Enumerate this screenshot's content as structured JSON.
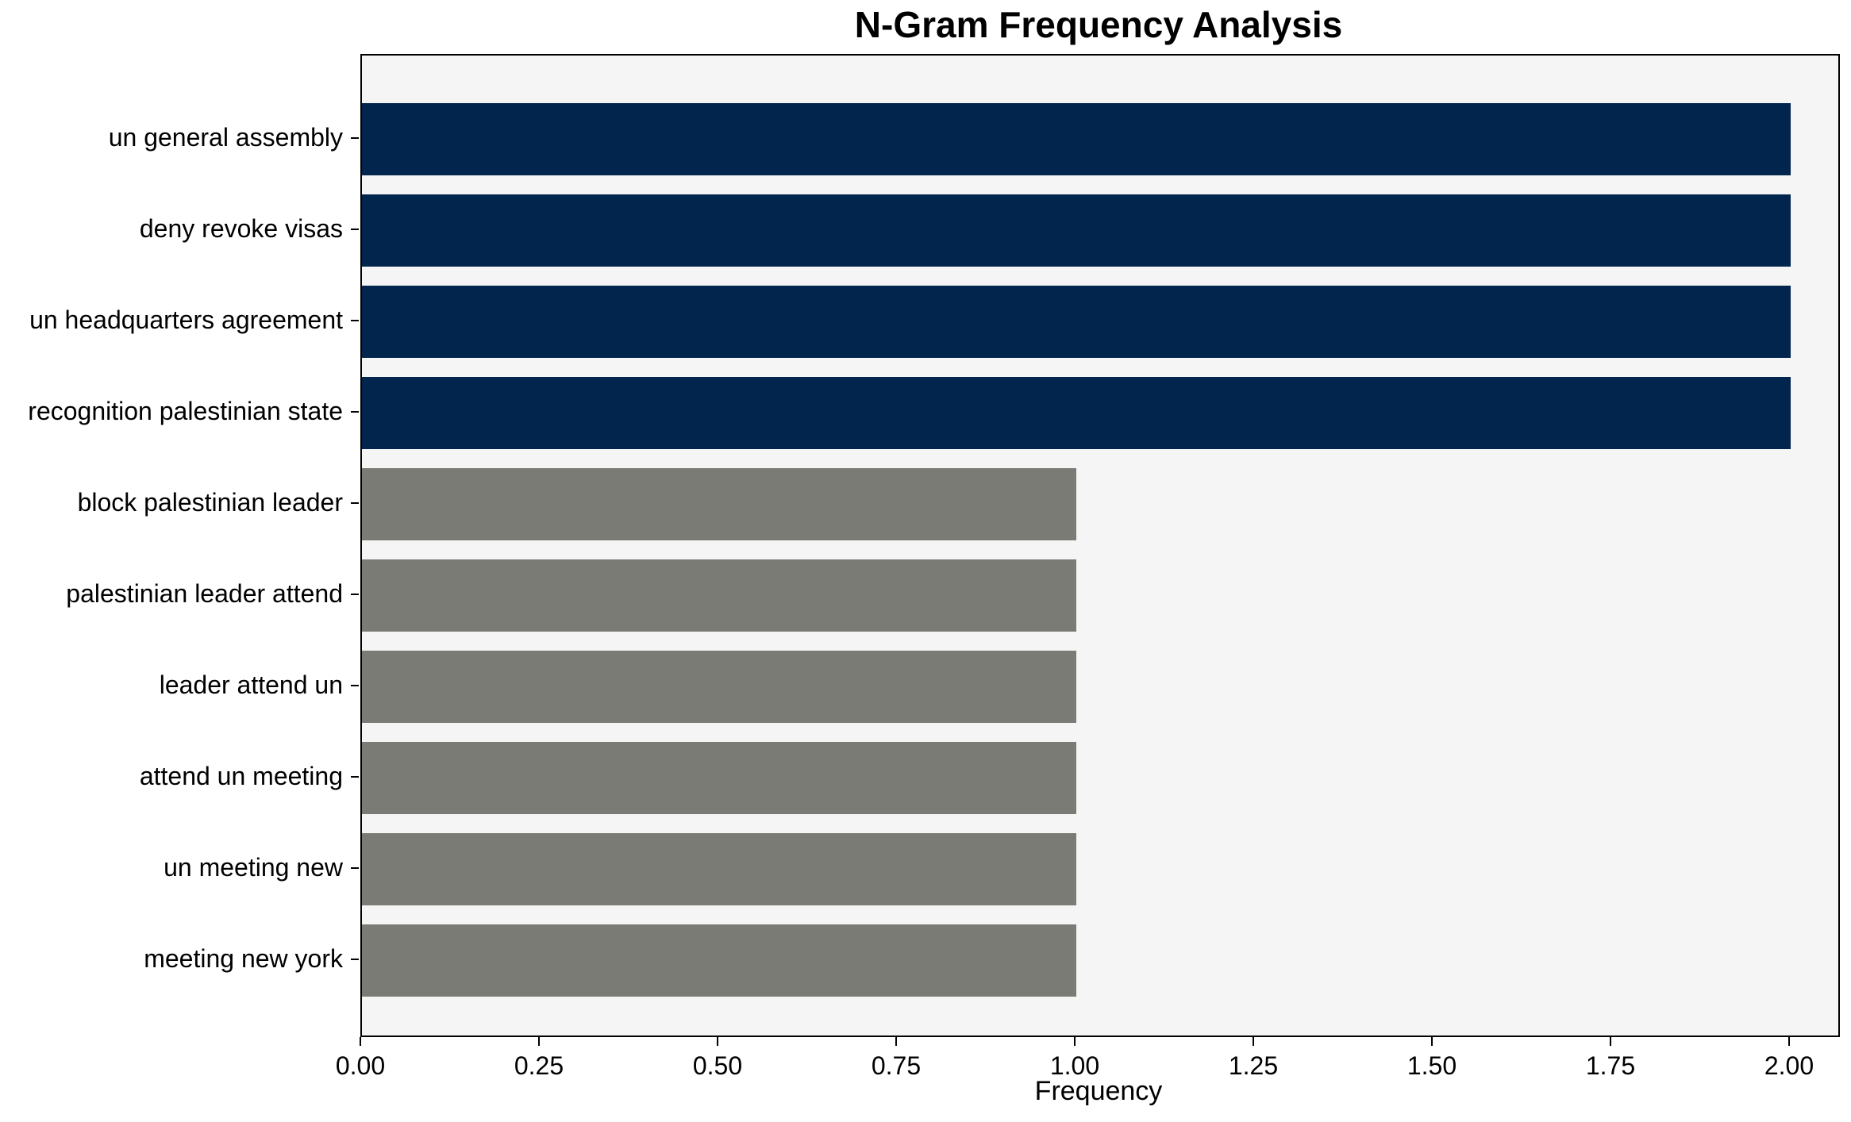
{
  "chart_data": {
    "type": "bar",
    "orientation": "horizontal",
    "title": "N-Gram Frequency Analysis",
    "xlabel": "Frequency",
    "ylabel": "",
    "categories": [
      "un general assembly",
      "deny revoke visas",
      "un headquarters agreement",
      "recognition palestinian state",
      "block palestinian leader",
      "palestinian leader attend",
      "leader attend un",
      "attend un meeting",
      "un meeting new",
      "meeting new york"
    ],
    "values": [
      2,
      2,
      2,
      2,
      1,
      1,
      1,
      1,
      1,
      1
    ],
    "bar_colors": [
      "#02254d",
      "#02254d",
      "#02254d",
      "#02254d",
      "#7b7b75",
      "#7b7b75",
      "#7b7b75",
      "#7b7b75",
      "#7b7b75",
      "#7b7b75"
    ],
    "xlim": [
      0,
      2.0667
    ],
    "xticks": [
      0.0,
      0.25,
      0.5,
      0.75,
      1.0,
      1.25,
      1.5,
      1.75,
      2.0
    ],
    "xtick_labels": [
      "0.00",
      "0.25",
      "0.50",
      "0.75",
      "1.00",
      "1.25",
      "1.50",
      "1.75",
      "2.00"
    ],
    "grid": false,
    "legend": "none",
    "colors": {
      "high_frequency_bar": "#02254d",
      "low_frequency_bar": "#7b7b75",
      "plot_background": "#f5f5f5",
      "figure_background": "#ffffff",
      "spine": "#000000",
      "text": "#000000"
    }
  }
}
